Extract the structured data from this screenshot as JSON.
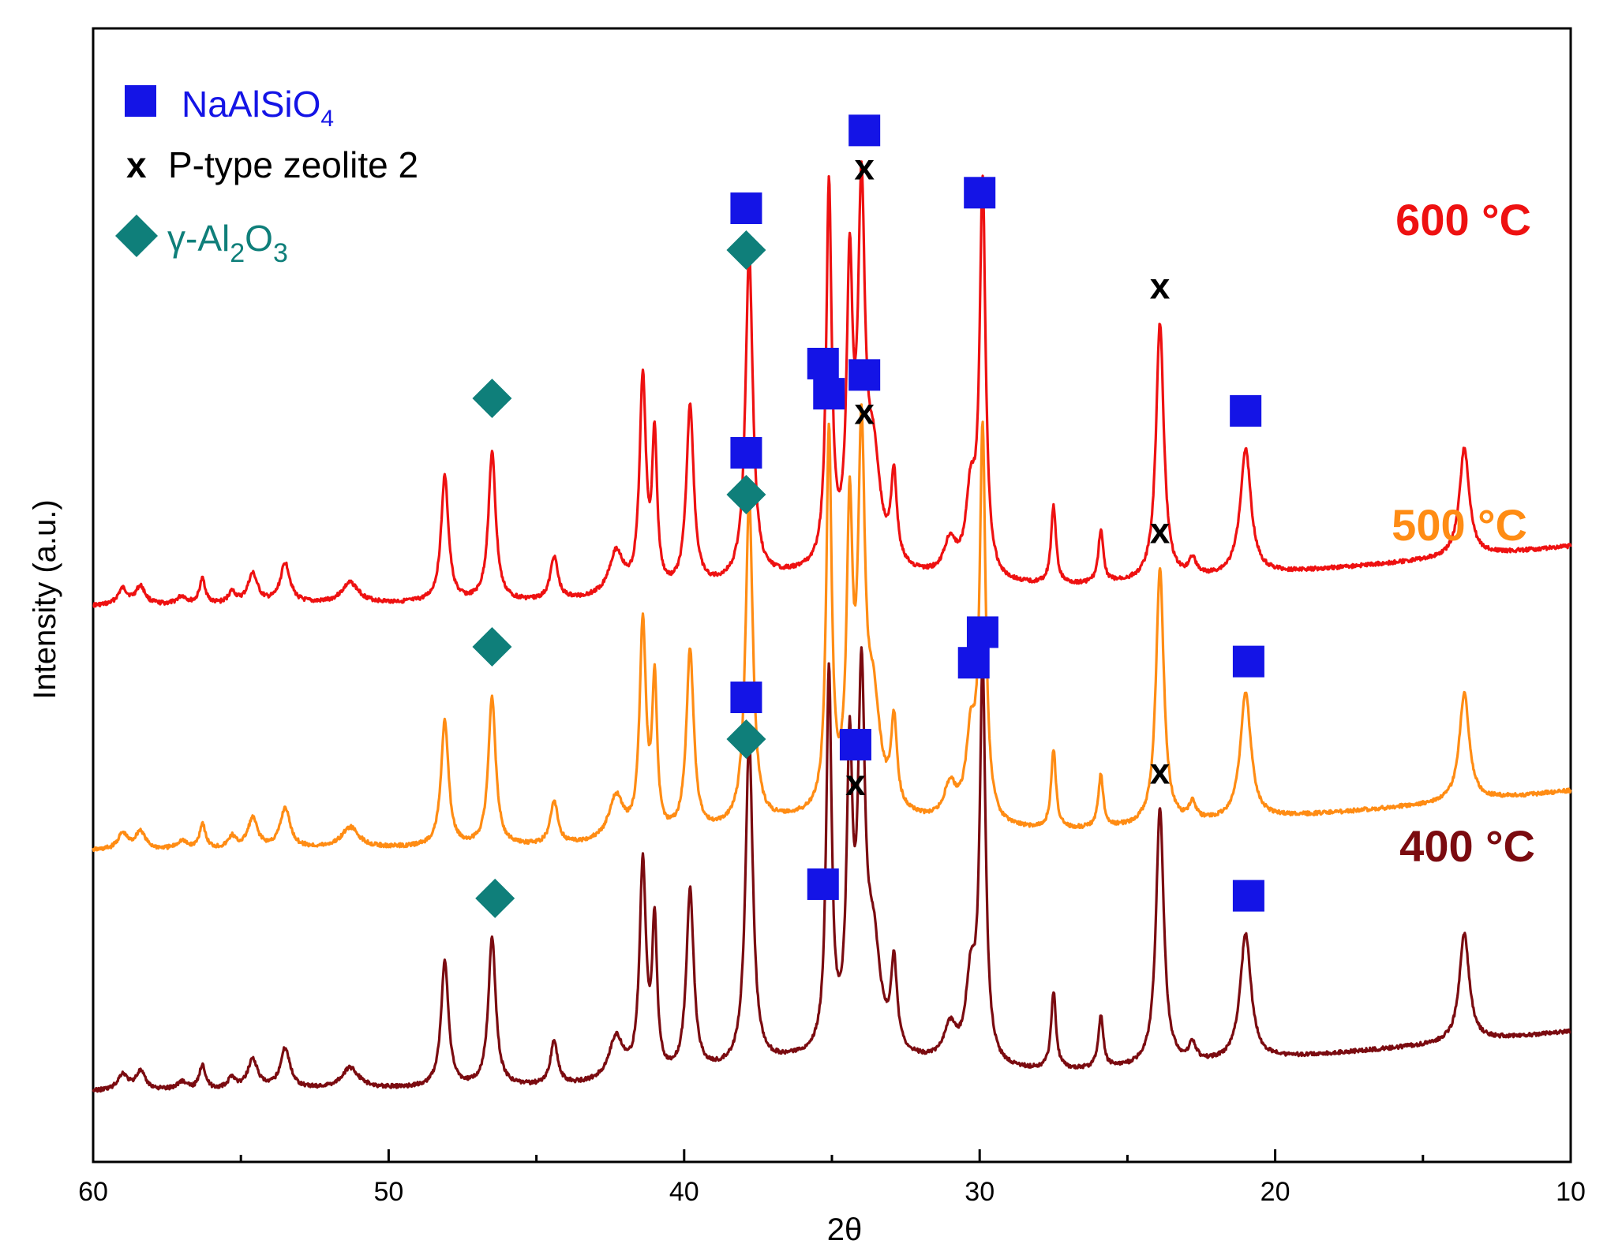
{
  "chart_data": {
    "type": "line",
    "title": "",
    "xlabel": "2θ",
    "ylabel": "Intensity (a.u.)",
    "xlim": [
      60,
      10
    ],
    "x_reversed": true,
    "xticks": [
      60,
      50,
      40,
      30,
      20,
      10
    ],
    "xtick_labels": [
      "60",
      "50",
      "40",
      "30",
      "20",
      "10"
    ],
    "grid": false,
    "legend": {
      "placement": "top-left",
      "entries": [
        {
          "marker": "square",
          "label": "NaAlSiO",
          "subscript": "4",
          "color": "#1414e6"
        },
        {
          "marker": "x",
          "label": "P-type zeolite 2",
          "color": "#000000"
        },
        {
          "marker": "diamond",
          "label_prefix": "γ-Al",
          "sub1": "2",
          "label_mid": "O",
          "sub2": "3",
          "color": "#0f7f7a"
        }
      ]
    },
    "peaks": [
      {
        "pos": 59.0,
        "h": 14,
        "w": 0.2
      },
      {
        "pos": 58.4,
        "h": 16,
        "w": 0.2
      },
      {
        "pos": 57.0,
        "h": 7,
        "w": 0.2
      },
      {
        "pos": 56.3,
        "h": 22,
        "w": 0.12
      },
      {
        "pos": 55.3,
        "h": 10,
        "w": 0.15
      },
      {
        "pos": 54.6,
        "h": 26,
        "w": 0.2
      },
      {
        "pos": 53.5,
        "h": 35,
        "w": 0.2
      },
      {
        "pos": 51.3,
        "h": 18,
        "w": 0.35
      },
      {
        "pos": 48.1,
        "h": 110,
        "w": 0.15
      },
      {
        "pos": 46.5,
        "h": 130,
        "w": 0.15
      },
      {
        "pos": 44.4,
        "h": 38,
        "w": 0.15
      },
      {
        "pos": 42.3,
        "h": 38,
        "w": 0.3
      },
      {
        "pos": 41.4,
        "h": 185,
        "w": 0.13
      },
      {
        "pos": 41.0,
        "h": 130,
        "w": 0.1
      },
      {
        "pos": 39.8,
        "h": 160,
        "w": 0.15
      },
      {
        "pos": 37.8,
        "h": 285,
        "w": 0.15
      },
      {
        "pos": 35.1,
        "h": 330,
        "w": 0.11
      },
      {
        "pos": 34.4,
        "h": 245,
        "w": 0.12
      },
      {
        "pos": 34.0,
        "h": 305,
        "w": 0.14
      },
      {
        "pos": 33.6,
        "h": 90,
        "w": 0.28
      },
      {
        "pos": 32.9,
        "h": 75,
        "w": 0.12
      },
      {
        "pos": 31.0,
        "h": 30,
        "w": 0.25
      },
      {
        "pos": 30.3,
        "h": 70,
        "w": 0.2
      },
      {
        "pos": 29.9,
        "h": 340,
        "w": 0.12
      },
      {
        "pos": 27.5,
        "h": 68,
        "w": 0.1
      },
      {
        "pos": 25.9,
        "h": 46,
        "w": 0.1
      },
      {
        "pos": 23.9,
        "h": 225,
        "w": 0.16
      },
      {
        "pos": 22.8,
        "h": 15,
        "w": 0.15
      },
      {
        "pos": 21.0,
        "h": 110,
        "w": 0.22
      },
      {
        "pos": 13.6,
        "h": 95,
        "w": 0.2
      }
    ],
    "series": [
      {
        "name": "600 °C",
        "color": "#ee1111",
        "offset": 690,
        "label": "600 °C"
      },
      {
        "name": "500 °C",
        "color": "#ff8c14",
        "offset": 380,
        "label": "500 °C"
      },
      {
        "name": "400 °C",
        "color": "#7b0b10",
        "offset": 75,
        "label": "400 °C"
      }
    ],
    "annotations": [
      {
        "series": 0,
        "marker": "diamond",
        "x": 46.5,
        "dy": 50
      },
      {
        "series": 0,
        "marker": "square",
        "x": 37.9,
        "dy": 80
      },
      {
        "series": 0,
        "marker": "diamond",
        "x": 37.9,
        "dy": 27
      },
      {
        "series": 0,
        "marker": "square",
        "x": 35.3,
        "dy": 63
      },
      {
        "series": 0,
        "marker": "square",
        "x": 33.9,
        "dy": 70
      },
      {
        "series": 0,
        "marker": "x",
        "x": 33.9,
        "dy": 22
      },
      {
        "series": 0,
        "marker": "square",
        "x": 30.0,
        "dy": 28
      },
      {
        "series": 0,
        "marker": "x",
        "x": 23.9,
        "dy": 27
      },
      {
        "series": 0,
        "marker": "square",
        "x": 21.0,
        "dy": 30
      },
      {
        "series": 1,
        "marker": "diamond",
        "x": 46.5,
        "dy": 45
      },
      {
        "series": 1,
        "marker": "square",
        "x": 37.9,
        "dy": 80
      },
      {
        "series": 1,
        "marker": "diamond",
        "x": 37.9,
        "dy": 27
      },
      {
        "series": 1,
        "marker": "square",
        "x": 35.1,
        "dy": 18
      },
      {
        "series": 1,
        "marker": "square",
        "x": 33.9,
        "dy": 70
      },
      {
        "series": 1,
        "marker": "x",
        "x": 33.9,
        "dy": 22
      },
      {
        "series": 1,
        "marker": "square",
        "x": 30.2,
        "dy": 28
      },
      {
        "series": 1,
        "marker": "x",
        "x": 23.9,
        "dy": 27
      },
      {
        "series": 1,
        "marker": "square",
        "x": 20.9,
        "dy": 30
      },
      {
        "series": 2,
        "marker": "diamond",
        "x": 46.4,
        "dy": 50
      },
      {
        "series": 2,
        "marker": "square",
        "x": 37.9,
        "dy": 75
      },
      {
        "series": 2,
        "marker": "diamond",
        "x": 37.9,
        "dy": 22
      },
      {
        "series": 2,
        "marker": "square",
        "x": 35.3,
        "dy": 18
      },
      {
        "series": 2,
        "marker": "square",
        "x": 34.2,
        "dy": 72
      },
      {
        "series": 2,
        "marker": "x",
        "x": 34.2,
        "dy": 22
      },
      {
        "series": 2,
        "marker": "square",
        "x": 29.9,
        "dy": 18
      },
      {
        "series": 2,
        "marker": "x",
        "x": 23.9,
        "dy": 27
      },
      {
        "series": 2,
        "marker": "square",
        "x": 20.9,
        "dy": 38
      }
    ],
    "marker_colors": {
      "square": "#1414e6",
      "diamond": "#0f7f7a",
      "x": "#000000"
    },
    "x_marker_text": "x"
  }
}
